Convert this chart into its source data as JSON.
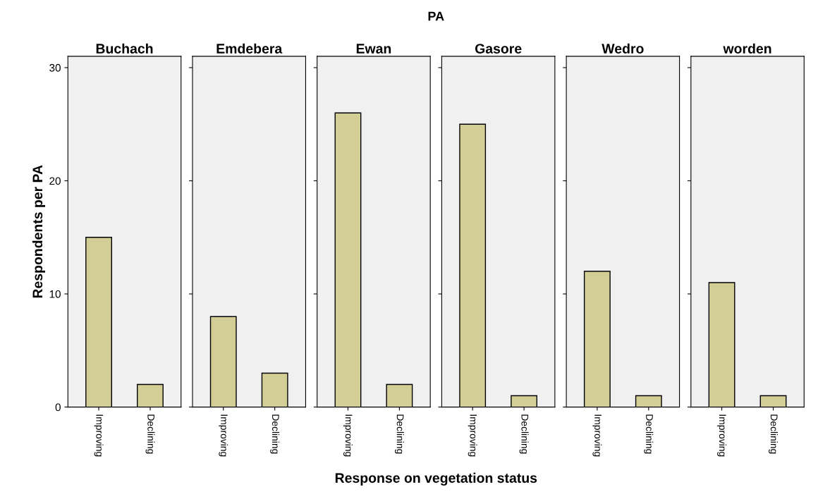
{
  "chart_data": [
    {
      "type": "other",
      "title": "PA",
      "xlabel": "Response on vegetation status"
    },
    {
      "type": "bar",
      "title": "Buchach",
      "ylabel": "Respondents per PA",
      "categories": [
        "Improving",
        "Declining"
      ],
      "values": [
        15,
        2
      ],
      "color": "#d3cd96",
      "ylim": [
        0,
        31
      ],
      "yticks": [
        0,
        10,
        20,
        30
      ],
      "grid": false
    },
    {
      "type": "bar",
      "title": "Emdebera",
      "categories": [
        "Improving",
        "Declining"
      ],
      "values": [
        8,
        3
      ],
      "color": "#d3cd96",
      "ylim": [
        0,
        31
      ],
      "yticks": [
        0,
        10,
        20,
        30
      ],
      "grid": false,
      "tick_labels": "x"
    },
    {
      "type": "bar",
      "title": "Ewan",
      "categories": [
        "Improving",
        "Declining"
      ],
      "values": [
        26,
        2
      ],
      "color": "#d3cd96",
      "ylim": [
        0,
        31
      ],
      "yticks": [
        0,
        10,
        20,
        30
      ],
      "grid": false,
      "tick_labels": "x"
    },
    {
      "type": "bar",
      "title": "Gasore",
      "categories": [
        "Improving",
        "Declining"
      ],
      "values": [
        25,
        1
      ],
      "color": "#d3cd96",
      "ylim": [
        0,
        31
      ],
      "yticks": [
        0,
        10,
        20,
        30
      ],
      "grid": false,
      "tick_labels": "x"
    },
    {
      "type": "bar",
      "title": "Wedro",
      "categories": [
        "Improving",
        "Declining"
      ],
      "values": [
        12,
        1
      ],
      "color": "#d3cd96",
      "ylim": [
        0,
        31
      ],
      "yticks": [
        0,
        10,
        20,
        30
      ],
      "grid": false,
      "tick_labels": "x"
    },
    {
      "type": "bar",
      "title": "worden",
      "categories": [
        "Improving",
        "Declining"
      ],
      "values": [
        11,
        1
      ],
      "color": "#d3cd96",
      "ylim": [
        0,
        31
      ],
      "yticks": [
        0,
        10,
        20,
        30
      ],
      "grid": false,
      "tick_labels": "x"
    }
  ]
}
